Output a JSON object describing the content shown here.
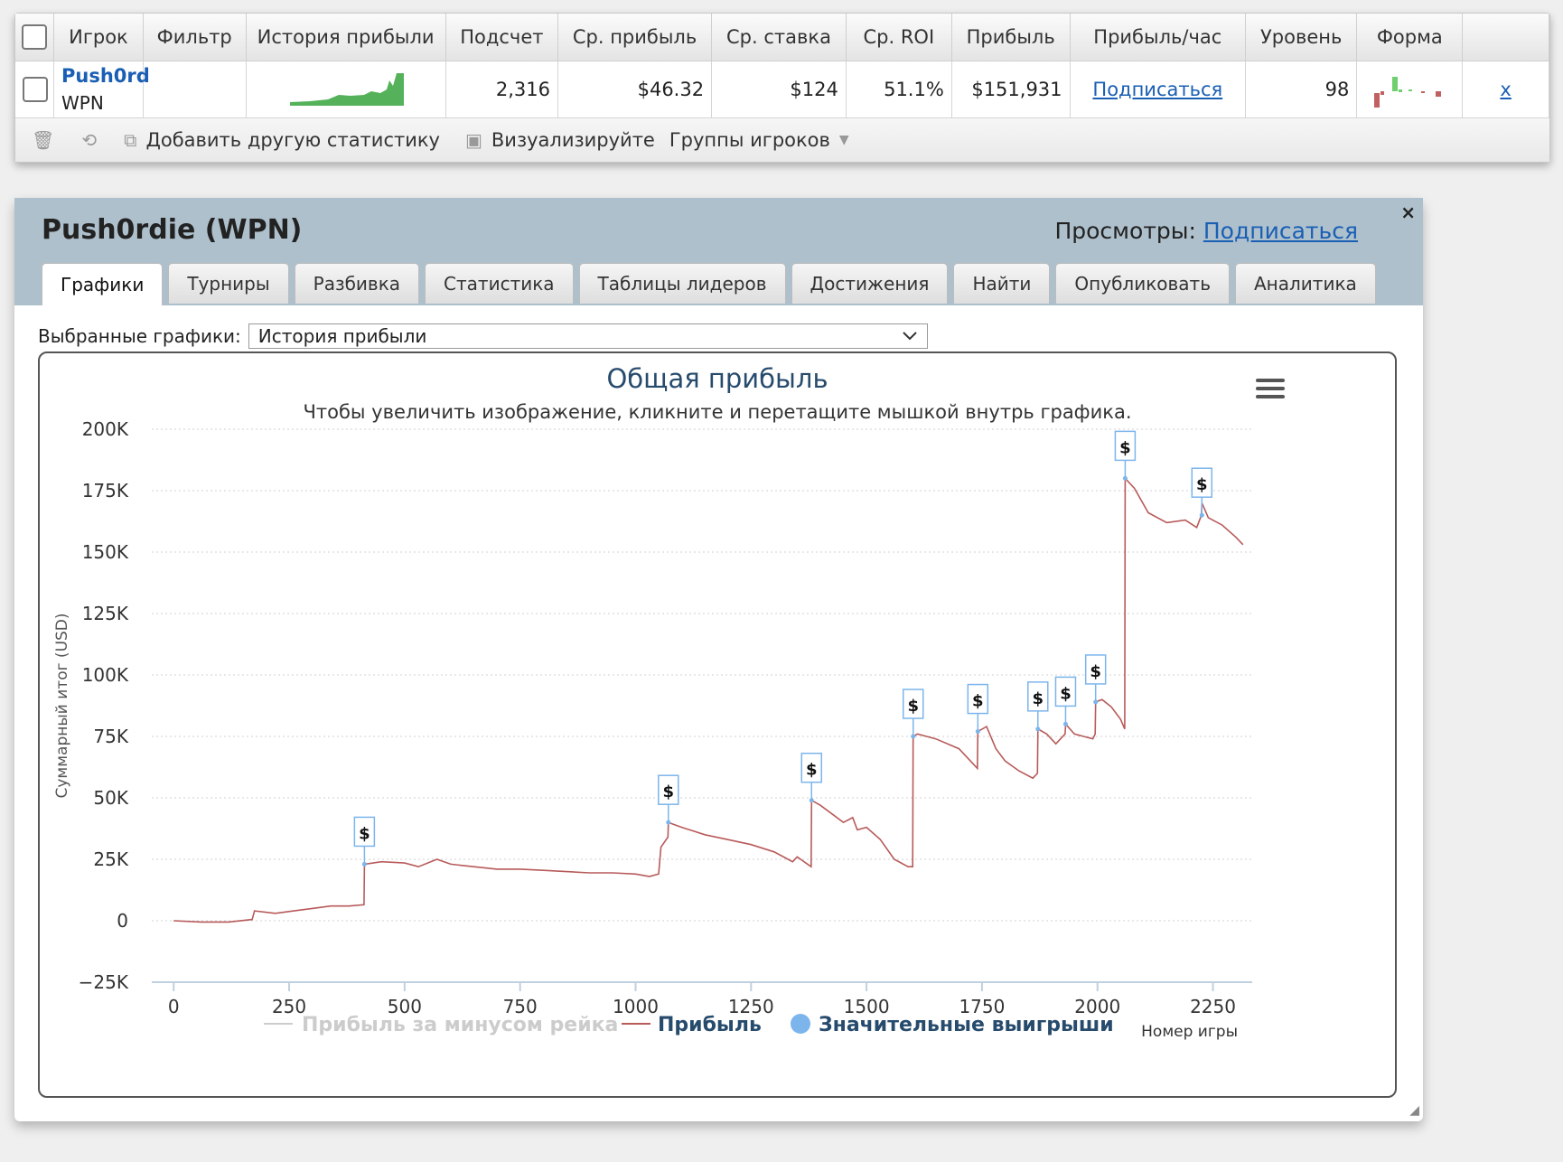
{
  "stats": {
    "headers": [
      "",
      "Игрок",
      "Фильтр",
      "История прибыли",
      "Подсчет",
      "Ср. прибыль",
      "Ср. ставка",
      "Ср. ROI",
      "Прибыль",
      "Прибыль/час",
      "Уровень",
      "Форма",
      ""
    ],
    "row": {
      "player": "Push0rd",
      "network": "WPN",
      "filter": "",
      "count": "2,316",
      "avg_profit": "$46.32",
      "avg_stake": "$124",
      "avg_roi": "51.1%",
      "profit": "$151,931",
      "profit_per_hour": "Подписаться",
      "level": "98",
      "remove": "x"
    },
    "toolbar": {
      "add_stat": "Добавить другую статистику",
      "visualize": "Визуализируйте",
      "player_groups": "Группы игроков"
    }
  },
  "panel": {
    "title": "Push0rdie (WPN)",
    "views_label": "Просмотры:",
    "views_link": "Подписаться",
    "close": "×",
    "tabs": [
      "Графики",
      "Турниры",
      "Разбивка",
      "Статистика",
      "Таблицы лидеров",
      "Достижения",
      "Найти",
      "Опубликовать",
      "Аналитика"
    ],
    "active_tab": 0,
    "select_label": "Выбранные графики:",
    "select_value": "История прибыли"
  },
  "chart_data": {
    "type": "line",
    "title": "Общая прибыль",
    "subtitle": "Чтобы увеличить изображение, кликните и перетащите мышкой внутрь графика.",
    "xlabel": "Номер игры",
    "ylabel": "Суммарный итог (USD)",
    "xlim": [
      -20,
      2335
    ],
    "ylim": [
      -25000,
      200000
    ],
    "x_ticks": [
      0,
      250,
      500,
      750,
      1000,
      1250,
      1500,
      1750,
      2000,
      2250
    ],
    "x_tick_labels": [
      "0",
      "250",
      "500",
      "750",
      "1000",
      "1250",
      "1500",
      "1750",
      "2000",
      "2250"
    ],
    "y_ticks": [
      -25000,
      0,
      25000,
      50000,
      75000,
      100000,
      125000,
      150000,
      175000,
      200000
    ],
    "y_tick_labels": [
      "−25K",
      "0",
      "25K",
      "50K",
      "75K",
      "100K",
      "125K",
      "150K",
      "175K",
      "200K"
    ],
    "grid": true,
    "legend_position": "bottom",
    "legend": [
      "Прибыль за минусом рейка",
      "Прибыль",
      "Значительные выигрыши"
    ],
    "series": [
      {
        "name": "Прибыль",
        "color": "#b85a5a",
        "x": [
          0,
          60,
          120,
          170,
          175,
          220,
          260,
          300,
          340,
          380,
          412,
          413,
          450,
          500,
          530,
          570,
          600,
          650,
          700,
          750,
          800,
          850,
          900,
          950,
          1000,
          1030,
          1050,
          1055,
          1070,
          1071,
          1100,
          1150,
          1200,
          1250,
          1300,
          1340,
          1350,
          1380,
          1381,
          1400,
          1450,
          1470,
          1480,
          1500,
          1530,
          1560,
          1590,
          1600,
          1601,
          1610,
          1650,
          1700,
          1730,
          1740,
          1741,
          1760,
          1780,
          1800,
          1830,
          1860,
          1870,
          1871,
          1890,
          1910,
          1930,
          1931,
          1950,
          1970,
          1990,
          1995,
          1996,
          2010,
          2030,
          2050,
          2059,
          2060,
          2080,
          2110,
          2150,
          2190,
          2215,
          2225,
          2226,
          2240,
          2270,
          2300,
          2315
        ],
        "y": [
          0,
          -500,
          -500,
          500,
          4000,
          3000,
          4000,
          5000,
          6000,
          6000,
          6500,
          23000,
          24000,
          23500,
          22000,
          25000,
          23000,
          22000,
          21000,
          21000,
          20500,
          20000,
          19500,
          19500,
          19000,
          18000,
          19000,
          30000,
          34000,
          40000,
          38000,
          35000,
          33000,
          31000,
          28000,
          24000,
          26000,
          22000,
          49000,
          47000,
          40000,
          42000,
          37000,
          38000,
          33000,
          25000,
          22000,
          22000,
          75000,
          76000,
          74000,
          70000,
          64000,
          62000,
          77000,
          79000,
          70000,
          65000,
          61000,
          58000,
          60000,
          78000,
          76000,
          72000,
          76000,
          80000,
          76000,
          75000,
          74000,
          76000,
          89000,
          90000,
          87000,
          82000,
          78000,
          180000,
          176000,
          166000,
          162000,
          163000,
          160000,
          165000,
          170000,
          164000,
          161000,
          156000,
          153000
        ]
      },
      {
        "name": "Значительные выигрыши",
        "color": "#7cb5ec",
        "x": [
          413,
          1071,
          1381,
          1601,
          1741,
          1871,
          1931,
          1996,
          2060,
          2226
        ],
        "y": [
          23000,
          40000,
          49000,
          75000,
          77000,
          78000,
          80000,
          89000,
          180000,
          165000
        ],
        "label": "$"
      }
    ]
  }
}
